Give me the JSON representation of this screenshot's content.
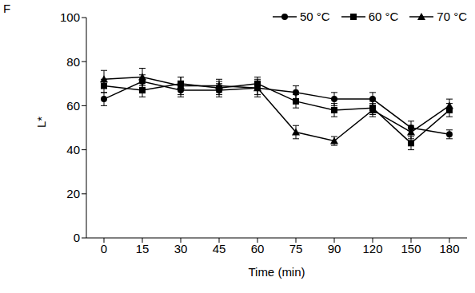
{
  "chart_data": {
    "type": "line",
    "title": "F",
    "xlabel": "Time (min)",
    "ylabel": "L*",
    "categories": [
      "0",
      "15",
      "30",
      "45",
      "60",
      "75",
      "90",
      "120",
      "150",
      "180"
    ],
    "series": [
      {
        "name": "50 °C",
        "color": "#000000",
        "marker": "circle",
        "values": [
          63,
          71,
          67,
          67,
          68,
          66,
          63,
          63,
          50,
          47
        ],
        "errors": [
          3,
          3,
          3,
          3,
          3,
          3,
          3,
          3,
          3,
          2
        ]
      },
      {
        "name": "60 °C",
        "color": "#000000",
        "marker": "square",
        "values": [
          69,
          67,
          70,
          68,
          70,
          62,
          58,
          59,
          43,
          58
        ],
        "errors": [
          3,
          3,
          3,
          3,
          3,
          3,
          3,
          3,
          3,
          3
        ]
      },
      {
        "name": "70 °C",
        "color": "#000000",
        "marker": "triangle",
        "values": [
          72,
          73,
          69,
          69,
          68,
          48,
          44,
          58,
          48,
          60
        ],
        "errors": [
          4,
          4,
          4,
          3,
          4,
          3,
          2,
          3,
          3,
          3
        ]
      }
    ],
    "ylim": [
      0,
      100
    ],
    "yticks": [
      0,
      20,
      40,
      60,
      80,
      100
    ],
    "grid": false,
    "legend": "upper right"
  }
}
